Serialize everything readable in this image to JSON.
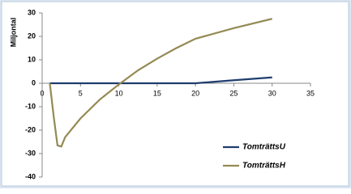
{
  "chart_data": {
    "type": "line",
    "y_label": "Miljontal",
    "x": [
      1,
      1.5,
      2,
      2.5,
      3,
      5,
      7.5,
      10,
      12.5,
      15,
      17.5,
      20,
      25,
      30
    ],
    "series": [
      {
        "name": "TomträttsU",
        "color": "#1f3d6e",
        "values": [
          0,
          0,
          0,
          0,
          0,
          0,
          0,
          0,
          0,
          0,
          0,
          0,
          1.3,
          2.5
        ]
      },
      {
        "name": "TomträttsH",
        "color": "#948a54",
        "values": [
          0,
          -14,
          -26.5,
          -27,
          -23,
          -15,
          -7,
          -0.5,
          5.5,
          10.5,
          15,
          19,
          23.5,
          27.5
        ]
      }
    ],
    "xlim": [
      0,
      35
    ],
    "xticks": [
      0,
      5,
      10,
      15,
      20,
      25,
      30,
      35
    ],
    "ylim": [
      -40,
      30
    ],
    "yticks": [
      -40,
      -30,
      -20,
      -10,
      0,
      10,
      20,
      30
    ],
    "legend": "lower right"
  }
}
